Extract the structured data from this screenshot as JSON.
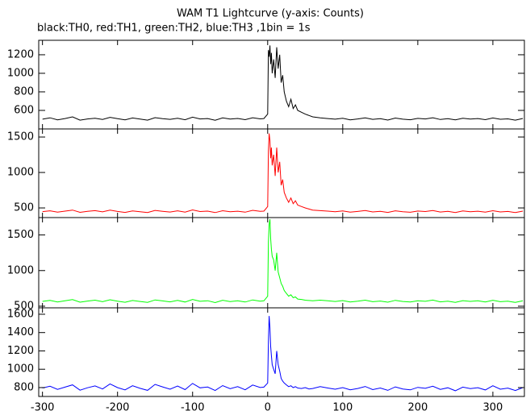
{
  "chart_data": {
    "type": "line",
    "title": "WAM T1 Lightcurve (y-axis: Counts)",
    "subtitle": "black:TH0, red:TH1, green:TH2, blue:TH3 ,1bin = 1s",
    "x": [
      -300,
      -290,
      -280,
      -270,
      -260,
      -250,
      -240,
      -230,
      -220,
      -210,
      -200,
      -190,
      -180,
      -170,
      -160,
      -150,
      -140,
      -130,
      -120,
      -110,
      -100,
      -90,
      -80,
      -70,
      -60,
      -50,
      -40,
      -30,
      -20,
      -10,
      -5,
      0,
      1,
      2,
      3,
      4,
      5,
      6,
      8,
      10,
      12,
      14,
      16,
      18,
      20,
      22,
      25,
      28,
      31,
      34,
      37,
      40,
      45,
      50,
      55,
      60,
      70,
      80,
      90,
      100,
      110,
      120,
      130,
      140,
      150,
      160,
      170,
      180,
      190,
      200,
      210,
      220,
      230,
      240,
      250,
      260,
      270,
      280,
      290,
      300,
      310,
      320,
      330,
      340
    ],
    "xlim": [
      -305,
      342
    ],
    "xticks": [
      -300,
      -200,
      -100,
      0,
      100,
      200,
      300
    ],
    "series": [
      {
        "color": "#000000",
        "ylim": [
          400,
          1356
        ],
        "yticks": [
          600,
          800,
          1000,
          1200
        ],
        "values": [
          505,
          520,
          498,
          512,
          530,
          495,
          508,
          515,
          502,
          525,
          510,
          498,
          518,
          507,
          495,
          522,
          511,
          503,
          516,
          499,
          527,
          508,
          512,
          494,
          519,
          506,
          513,
          500,
          521,
          509,
          512,
          560,
          1250,
          1180,
          1300,
          1100,
          1220,
          1000,
          1150,
          950,
          1280,
          1050,
          1200,
          900,
          980,
          800,
          700,
          640,
          720,
          620,
          660,
          600,
          580,
          560,
          545,
          530,
          520,
          512,
          505,
          515,
          498,
          508,
          520,
          503,
          511,
          496,
          517,
          505,
          499,
          514,
          508,
          521,
          502,
          510,
          497,
          515,
          506,
          512,
          500,
          518,
          504,
          509,
          495,
          513
        ]
      },
      {
        "color": "#ff0000",
        "ylim": [
          364,
          1614
        ],
        "yticks": [
          500,
          1000,
          1500
        ],
        "values": [
          448,
          460,
          440,
          455,
          470,
          438,
          452,
          462,
          445,
          468,
          450,
          437,
          458,
          447,
          436,
          465,
          453,
          442,
          459,
          441,
          472,
          449,
          455,
          434,
          461,
          446,
          454,
          440,
          466,
          451,
          455,
          520,
          1300,
          1550,
          1450,
          1200,
          1350,
          1100,
          1250,
          950,
          1350,
          1000,
          1150,
          820,
          900,
          720,
          640,
          580,
          640,
          560,
          600,
          540,
          520,
          500,
          485,
          470,
          462,
          455,
          446,
          458,
          440,
          450,
          463,
          444,
          452,
          437,
          460,
          446,
          439,
          456,
          449,
          464,
          442,
          451,
          436,
          457,
          447,
          454,
          441,
          461,
          444,
          450,
          435,
          455
        ]
      },
      {
        "color": "#00ff00",
        "ylim": [
          477,
          1744
        ],
        "yticks": [
          500,
          1000,
          1500
        ],
        "values": [
          568,
          582,
          560,
          576,
          592,
          556,
          572,
          584,
          563,
          590,
          570,
          555,
          580,
          566,
          554,
          588,
          574,
          561,
          581,
          559,
          594,
          569,
          576,
          551,
          583,
          565,
          575,
          558,
          588,
          571,
          575,
          640,
          1400,
          1650,
          1720,
          1450,
          1300,
          1200,
          1150,
          1000,
          1250,
          980,
          900,
          820,
          780,
          720,
          680,
          640,
          660,
          620,
          630,
          600,
          595,
          585,
          580,
          575,
          584,
          576,
          566,
          579,
          560,
          570,
          585,
          563,
          572,
          556,
          582,
          566,
          558,
          577,
          569,
          586,
          561,
          571,
          554,
          578,
          567,
          575,
          560,
          583,
          563,
          570,
          553,
          576
        ]
      },
      {
        "color": "#0000ff",
        "ylim": [
          703,
          1670
        ],
        "yticks": [
          800,
          1000,
          1200,
          1400,
          1600
        ],
        "values": [
          795,
          815,
          780,
          805,
          830,
          772,
          798,
          818,
          785,
          840,
          800,
          775,
          820,
          792,
          770,
          835,
          808,
          782,
          816,
          778,
          845,
          797,
          806,
          768,
          822,
          788,
          810,
          776,
          828,
          801,
          805,
          850,
          1300,
          1580,
          1450,
          1250,
          1150,
          1050,
          1000,
          950,
          1200,
          1050,
          980,
          900,
          870,
          850,
          830,
          810,
          820,
          800,
          810,
          795,
          790,
          800,
          785,
          790,
          810,
          795,
          782,
          800,
          776,
          790,
          812,
          778,
          795,
          770,
          808,
          785,
          775,
          802,
          792,
          815,
          780,
          798,
          765,
          805,
          788,
          799,
          774,
          820,
          782,
          794,
          768,
          800
        ]
      }
    ]
  }
}
